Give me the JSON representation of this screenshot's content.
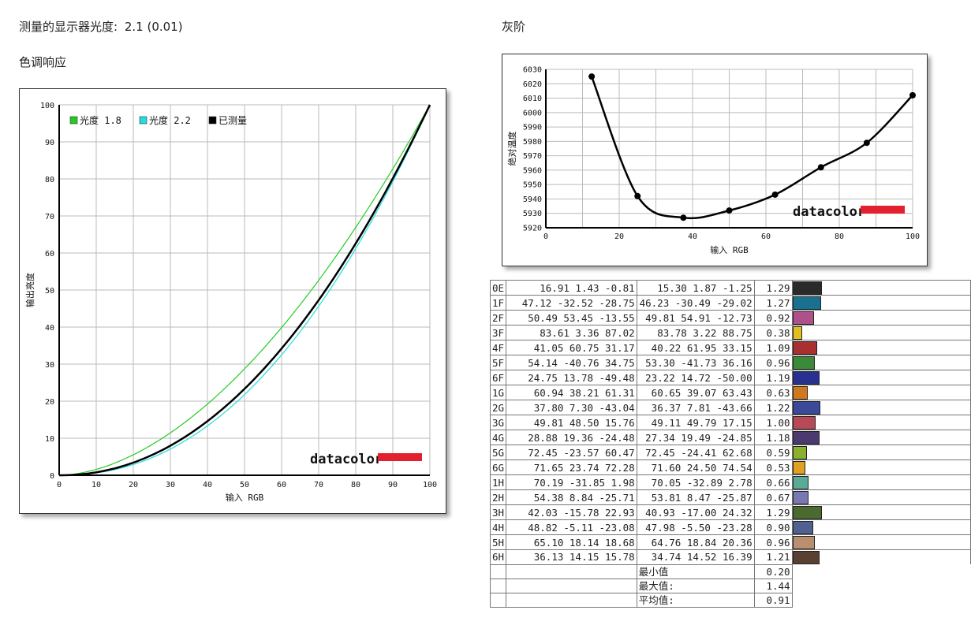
{
  "header": {
    "gamma_label": "测量的显示器光度:",
    "gamma_value": "2.1 (0.01)",
    "tone_title": "色调响应",
    "gray_title": "灰阶"
  },
  "colors": {
    "gamma18": "#22cc22",
    "gamma22": "#22dddd",
    "measured": "#000000",
    "brand_red": "#e3202d",
    "grid": "#bbbbbb"
  },
  "logo": "datacolor",
  "chart_data": [
    {
      "type": "line",
      "title": "色调响应",
      "xlabel": "输入 RGB",
      "ylabel": "输出亮度",
      "xlim": [
        0,
        100
      ],
      "ylim": [
        0,
        100
      ],
      "xticks": [
        "0",
        "10",
        "20",
        "30",
        "40",
        "50",
        "60",
        "70",
        "80",
        "90",
        "100"
      ],
      "yticks": [
        "0",
        "10",
        "20",
        "30",
        "40",
        "50",
        "60",
        "70",
        "80",
        "90",
        "100"
      ],
      "grid": true,
      "legend_position": "top-left",
      "series": [
        {
          "name": "光度 1.8",
          "gamma": 1.8,
          "color": "#22cc22"
        },
        {
          "name": "光度 2.2",
          "gamma": 2.2,
          "color": "#22dddd"
        },
        {
          "name": "已测量",
          "gamma": 2.1,
          "color": "#000000"
        }
      ]
    },
    {
      "type": "line",
      "title": "灰阶",
      "xlabel": "输入 RGB",
      "ylabel": "绝对温度",
      "xlim": [
        0,
        100
      ],
      "ylim": [
        5920,
        6030
      ],
      "xticks": [
        "0",
        "20",
        "40",
        "60",
        "80",
        "100"
      ],
      "yticks": [
        "5920",
        "5930",
        "5940",
        "5950",
        "5960",
        "5970",
        "5980",
        "5990",
        "6000",
        "6010",
        "6020",
        "6030"
      ],
      "grid": true,
      "x": [
        12.5,
        25,
        37.5,
        50,
        62.5,
        75,
        87.5,
        100
      ],
      "y": [
        6025,
        5942,
        5927,
        5932,
        5943,
        5962,
        5979,
        6012
      ]
    }
  ],
  "table": {
    "rows": [
      {
        "id": "0E",
        "v": [
          "16.91",
          "1.43",
          "-0.81",
          "15.30",
          "1.87",
          "-1.25",
          "1.29"
        ],
        "color": "#2a2a2a",
        "bar": 1.29
      },
      {
        "id": "1F",
        "v": [
          "47.12",
          "-32.52",
          "-28.75",
          "46.23",
          "-30.49",
          "-29.02",
          "1.27"
        ],
        "color": "#1a7090",
        "bar": 1.27
      },
      {
        "id": "2F",
        "v": [
          "50.49",
          "53.45",
          "-13.55",
          "49.81",
          "54.91",
          "-12.73",
          "0.92"
        ],
        "color": "#b0508a",
        "bar": 0.92
      },
      {
        "id": "3F",
        "v": [
          "83.61",
          "3.36",
          "87.02",
          "83.78",
          "3.22",
          "88.75",
          "0.38"
        ],
        "color": "#e0c020",
        "bar": 0.38
      },
      {
        "id": "4F",
        "v": [
          "41.05",
          "60.75",
          "31.17",
          "40.22",
          "61.95",
          "33.15",
          "1.09"
        ],
        "color": "#a83030",
        "bar": 1.09
      },
      {
        "id": "5F",
        "v": [
          "54.14",
          "-40.76",
          "34.75",
          "53.30",
          "-41.73",
          "36.16",
          "0.96"
        ],
        "color": "#3a8a3a",
        "bar": 0.96
      },
      {
        "id": "6F",
        "v": [
          "24.75",
          "13.78",
          "-49.48",
          "23.22",
          "14.72",
          "-50.00",
          "1.19"
        ],
        "color": "#283090",
        "bar": 1.19
      },
      {
        "id": "1G",
        "v": [
          "60.94",
          "38.21",
          "61.31",
          "60.65",
          "39.07",
          "63.43",
          "0.63"
        ],
        "color": "#d07820",
        "bar": 0.63
      },
      {
        "id": "2G",
        "v": [
          "37.80",
          "7.30",
          "-43.04",
          "36.37",
          "7.81",
          "-43.66",
          "1.22"
        ],
        "color": "#3a4a98",
        "bar": 1.22
      },
      {
        "id": "3G",
        "v": [
          "49.81",
          "48.50",
          "15.76",
          "49.11",
          "49.79",
          "17.15",
          "1.00"
        ],
        "color": "#b84a58",
        "bar": 1.0
      },
      {
        "id": "4G",
        "v": [
          "28.88",
          "19.36",
          "-24.48",
          "27.34",
          "19.49",
          "-24.85",
          "1.18"
        ],
        "color": "#4a3a70",
        "bar": 1.18
      },
      {
        "id": "5G",
        "v": [
          "72.45",
          "-23.57",
          "60.47",
          "72.45",
          "-24.41",
          "62.68",
          "0.59"
        ],
        "color": "#8ab030",
        "bar": 0.59
      },
      {
        "id": "6G",
        "v": [
          "71.65",
          "23.74",
          "72.28",
          "71.60",
          "24.50",
          "74.54",
          "0.53"
        ],
        "color": "#e0a020",
        "bar": 0.53
      },
      {
        "id": "1H",
        "v": [
          "70.19",
          "-31.85",
          "1.98",
          "70.05",
          "-32.89",
          "2.78",
          "0.66"
        ],
        "color": "#5aaa98",
        "bar": 0.66
      },
      {
        "id": "2H",
        "v": [
          "54.38",
          "8.84",
          "-25.71",
          "53.81",
          "8.47",
          "-25.87",
          "0.67"
        ],
        "color": "#7a78b0",
        "bar": 0.67
      },
      {
        "id": "3H",
        "v": [
          "42.03",
          "-15.78",
          "22.93",
          "40.93",
          "-17.00",
          "24.32",
          "1.29"
        ],
        "color": "#4a6a30",
        "bar": 1.29
      },
      {
        "id": "4H",
        "v": [
          "48.82",
          "-5.11",
          "-23.08",
          "47.98",
          "-5.50",
          "-23.28",
          "0.90"
        ],
        "color": "#506090",
        "bar": 0.9
      },
      {
        "id": "5H",
        "v": [
          "65.10",
          "18.14",
          "18.68",
          "64.76",
          "18.84",
          "20.36",
          "0.96"
        ],
        "color": "#b89070",
        "bar": 0.96
      },
      {
        "id": "6H",
        "v": [
          "36.13",
          "14.15",
          "15.78",
          "34.74",
          "14.52",
          "16.39",
          "1.21"
        ],
        "color": "#5a4030",
        "bar": 1.21
      }
    ],
    "summary": [
      {
        "label": "最小值",
        "value": "0.20"
      },
      {
        "label": "最大值:",
        "value": "1.44"
      },
      {
        "label": "平均值:",
        "value": "0.91"
      }
    ]
  }
}
